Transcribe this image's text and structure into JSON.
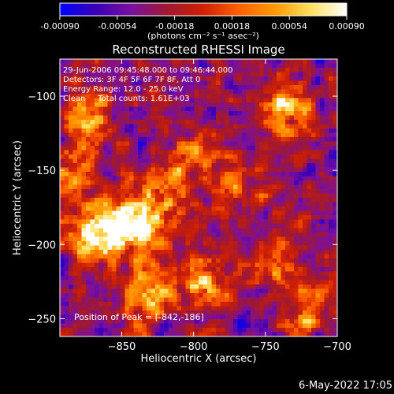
{
  "chart_data": {
    "type": "heatmap",
    "title": "Reconstructed RHESSI Image",
    "xlabel": "Heliocentric X (arcsec)",
    "ylabel": "Heliocentric Y (arcsec)",
    "xlim": [
      -893,
      -700
    ],
    "ylim": [
      -262,
      -75
    ],
    "x_ticks": [
      -850,
      -800,
      -750,
      -700
    ],
    "y_ticks": [
      -100,
      -150,
      -200,
      -250
    ],
    "colorbar": {
      "range": [
        -0.0009,
        0.0009
      ],
      "ticks": [
        "-0.00090",
        "-0.00054",
        "-0.00018",
        "0.00018",
        "0.00054",
        "0.00090"
      ],
      "unit_text": "(photons cm⁻² s⁻¹ asec⁻²)",
      "stops": [
        "#0000ff",
        "#3a00b4",
        "#7a10a0",
        "#a01830",
        "#d02000",
        "#ff6000",
        "#ff9a00",
        "#ffe060",
        "#ffffff"
      ]
    },
    "annotations": [
      "29-Jun-2006 09:45:48.000 to 09:46:44.000",
      "Detectors: 3F 4F 5F 6F 7F 8F, Att 0",
      "Energy Range: 12.0 - 25.0 keV",
      "Clean     Total counts: 1.61E+03"
    ],
    "peak_label": "Position of Peak = [-842,-186]",
    "peak": [
      -842,
      -186
    ],
    "sources": [
      {
        "x": -842,
        "y": -186,
        "amplitude": 1.0
      },
      {
        "x": -870,
        "y": -195,
        "amplitude": 0.75
      },
      {
        "x": -820,
        "y": -168,
        "amplitude": 0.55
      },
      {
        "x": -830,
        "y": -232,
        "amplitude": 0.65
      },
      {
        "x": -873,
        "y": -112,
        "amplitude": 0.55
      },
      {
        "x": -735,
        "y": -110,
        "amplitude": 0.7
      },
      {
        "x": -790,
        "y": -225,
        "amplitude": 0.55
      },
      {
        "x": -740,
        "y": -215,
        "amplitude": 0.5
      },
      {
        "x": -885,
        "y": -150,
        "amplitude": 0.5
      },
      {
        "x": -770,
        "y": -160,
        "amplitude": 0.4
      },
      {
        "x": -720,
        "y": -250,
        "amplitude": 0.45
      },
      {
        "x": -800,
        "y": -140,
        "amplitude": 0.4
      }
    ]
  },
  "footer_timestamp": "6-May-2022 17:05"
}
